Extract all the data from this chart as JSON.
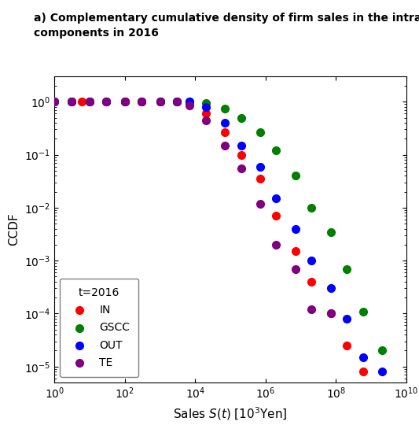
{
  "title": "a) Complementary cumulative density of firm sales in the intra-\ncomponents in 2016",
  "xlabel": "Sales $S(t)$ [$10^3$Yen]",
  "ylabel": "CCDF",
  "xlim": [
    1.0,
    10000000000.0
  ],
  "ylim": [
    5e-06,
    3.0
  ],
  "legend_title": "t=2016",
  "series": {
    "IN": {
      "color": "red",
      "x": [
        1,
        3,
        6,
        10,
        30,
        100,
        300,
        1000,
        3000,
        7000,
        20000,
        70000,
        200000,
        700000,
        2000000,
        7000000,
        20000000,
        70000000,
        200000000,
        600000000
      ],
      "y": [
        1.0,
        1.0,
        1.0,
        1.0,
        1.0,
        1.0,
        1.0,
        1.0,
        1.0,
        0.9,
        0.6,
        0.27,
        0.1,
        0.035,
        0.007,
        0.0015,
        0.0004,
        0.0001,
        2.5e-05,
        8e-06
      ]
    },
    "GSCC": {
      "color": "green",
      "x": [
        1,
        3,
        10,
        30,
        100,
        300,
        1000,
        3000,
        7000,
        20000,
        70000,
        200000,
        700000,
        2000000,
        7000000,
        20000000,
        70000000,
        200000000,
        600000000,
        2000000000
      ],
      "y": [
        1.0,
        1.0,
        1.0,
        1.0,
        1.0,
        1.0,
        1.0,
        1.0,
        1.0,
        0.95,
        0.75,
        0.5,
        0.27,
        0.12,
        0.04,
        0.01,
        0.0035,
        0.0007,
        0.00011,
        2e-05
      ]
    },
    "OUT": {
      "color": "blue",
      "x": [
        1,
        3,
        10,
        30,
        100,
        300,
        1000,
        3000,
        7000,
        20000,
        70000,
        200000,
        700000,
        2000000,
        7000000,
        20000000,
        70000000,
        200000000,
        600000000,
        2000000000
      ],
      "y": [
        1.0,
        1.0,
        1.0,
        1.0,
        1.0,
        1.0,
        1.0,
        1.0,
        1.0,
        0.8,
        0.4,
        0.15,
        0.06,
        0.015,
        0.004,
        0.001,
        0.0003,
        8e-05,
        1.5e-05,
        8e-06
      ]
    },
    "TE": {
      "color": "purple",
      "x": [
        1,
        3,
        10,
        30,
        100,
        300,
        1000,
        3000,
        7000,
        20000,
        70000,
        200000,
        700000,
        2000000,
        7000000,
        20000000,
        70000000
      ],
      "y": [
        1.0,
        1.0,
        1.0,
        1.0,
        1.0,
        1.0,
        1.0,
        1.0,
        0.85,
        0.45,
        0.15,
        0.055,
        0.012,
        0.002,
        0.0007,
        0.00012,
        0.0001
      ]
    }
  },
  "marker_size": 7,
  "figsize": [
    5.33,
    5.4
  ],
  "dpi": 100
}
